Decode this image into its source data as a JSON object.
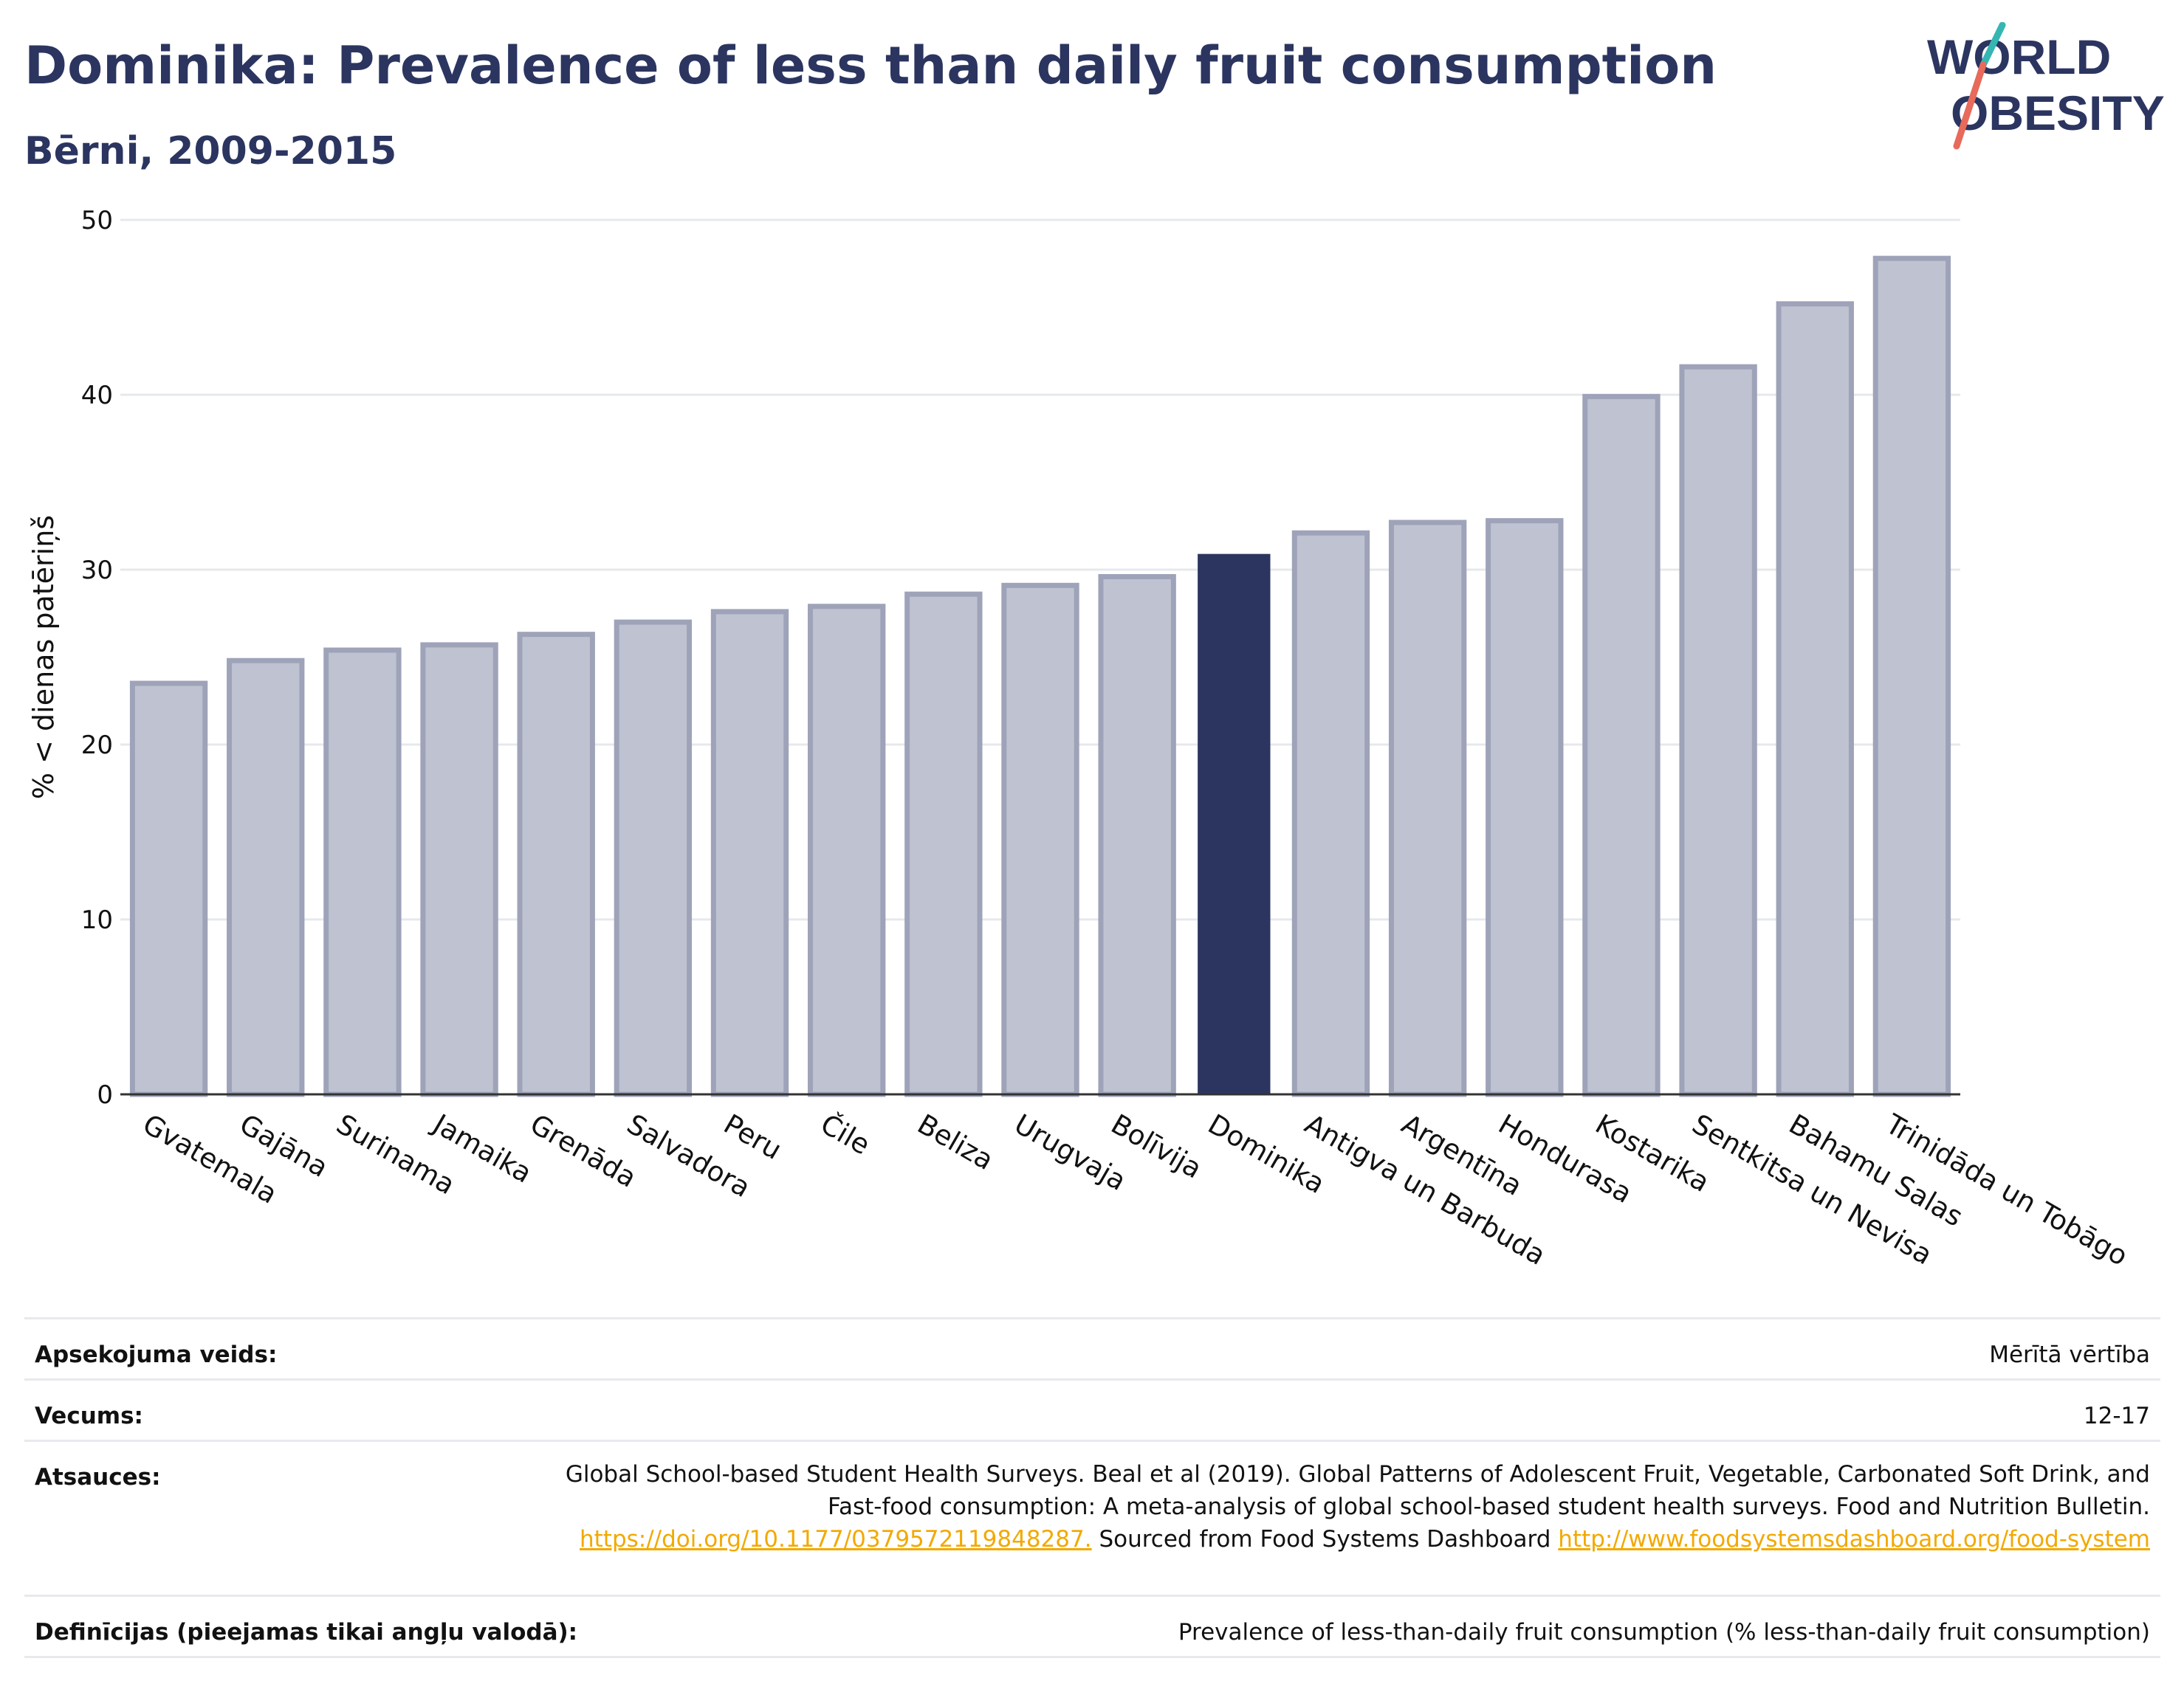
{
  "header": {
    "title": "Dominika: Prevalence of less than daily fruit consumption",
    "subtitle": "Bērni, 2009-2015",
    "logo_line1": "WORLD",
    "logo_line2": "OBESITY"
  },
  "chart_data": {
    "type": "bar",
    "title": "Dominika: Prevalence of less than daily fruit consumption",
    "subtitle": "Bērni, 2009-2015",
    "ylabel": "% < dienas patēriņš",
    "xlabel": "",
    "ylim": [
      0,
      50
    ],
    "yticks": [
      0,
      10,
      20,
      30,
      40,
      50
    ],
    "grid": true,
    "highlight": "Dominika",
    "categories": [
      "Gvatemala",
      "Gajāna",
      "Surinama",
      "Jamaika",
      "Grenāda",
      "Salvadora",
      "Peru",
      "Čile",
      "Beliza",
      "Urugvaja",
      "Bolīvija",
      "Dominika",
      "Antigva un Barbuda",
      "Argentīna",
      "Hondurasa",
      "Kostarika",
      "Sentkitsa un Nevisa",
      "Bahamu Salas",
      "Trinidāda un Tobāgo"
    ],
    "values": [
      23.5,
      24.8,
      25.4,
      25.7,
      26.3,
      27.0,
      27.6,
      27.9,
      28.6,
      29.1,
      29.6,
      30.9,
      32.1,
      32.7,
      32.8,
      39.9,
      41.6,
      45.2,
      47.8
    ],
    "colors": {
      "bar": "#bfc3d1",
      "bar_border": "#9ea3b9",
      "highlight": "#2b3560",
      "grid": "#e6e8ee",
      "axis": "#333333"
    }
  },
  "meta": {
    "rows": [
      {
        "label": "Apsekojuma veids:",
        "value": "Mērītā vērtība"
      },
      {
        "label": "Vecums:",
        "value": "12-17"
      }
    ],
    "ref_label": "Atsauces:",
    "ref_text1": "Global School-based Student Health Surveys. Beal et al (2019). Global Patterns of Adolescent Fruit, Vegetable, Carbonated Soft Drink, and Fast-food consumption: A meta-analysis of global school-based student health surveys. Food and Nutrition Bulletin.",
    "ref_link1": "https://doi.org/10.1177/0379572119848287.",
    "ref_text2": "Sourced from Food Systems Dashboard",
    "ref_link2": "http://www.foodsystemsdashboard.org/food-system",
    "def_label": "Definīcijas (pieejamas tikai angļu valodā):",
    "def_value": "Prevalence of less-than-daily fruit consumption (% less-than-daily fruit consumption)"
  }
}
